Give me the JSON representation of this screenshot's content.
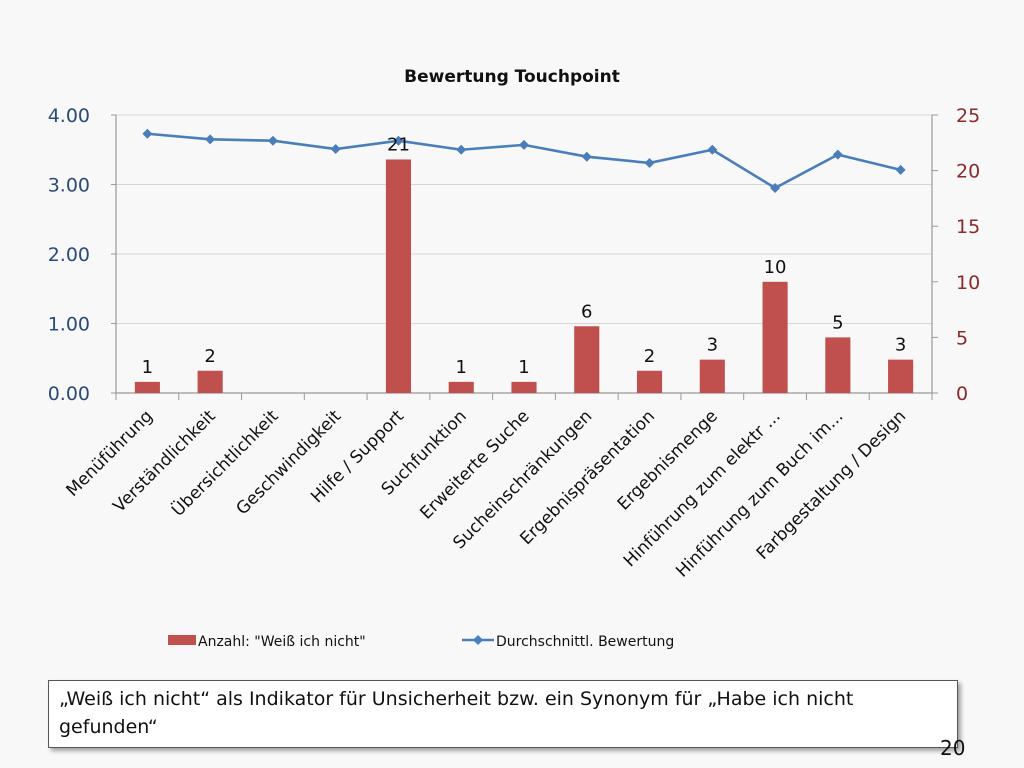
{
  "chart_data": {
    "type": "bar",
    "title": "Bewertung Touchpoint",
    "categories": [
      "Menüführung",
      "Verständlichkeit",
      "Übersichtlichkeit",
      "Geschwindigkeit",
      "Hilfe / Support",
      "Suchfunktion",
      "Erweiterte Suche",
      "Sucheinschränkungen",
      "Ergebnispräsentation",
      "Ergebnismenge",
      "Hinführung zum elektr ...",
      "Hinführung zum Buch im...",
      "Farbgestaltung / Design"
    ],
    "series": [
      {
        "name": "Anzahl: \"Weiß ich nicht\"",
        "type": "bar",
        "axis": "right",
        "color": "#c0504d",
        "values": [
          1,
          2,
          0,
          0,
          21,
          1,
          1,
          6,
          2,
          3,
          10,
          5,
          3
        ],
        "data_labels": [
          "1",
          "2",
          "",
          "",
          "21",
          "1",
          "1",
          "6",
          "2",
          "3",
          "10",
          "5",
          "3"
        ]
      },
      {
        "name": "Durchschnittl. Bewertung",
        "type": "line",
        "axis": "left",
        "color": "#4a7ebb",
        "marker": "diamond",
        "values": [
          3.73,
          3.65,
          3.63,
          3.51,
          3.63,
          3.5,
          3.57,
          3.4,
          3.31,
          3.5,
          2.95,
          3.43,
          3.21
        ]
      }
    ],
    "y_left": {
      "ylim": [
        0,
        4
      ],
      "ticks": [
        "0.00",
        "1.00",
        "2.00",
        "3.00",
        "4.00"
      ],
      "tick_values": [
        0,
        1,
        2,
        3,
        4
      ],
      "color": "#2a4a7a"
    },
    "y_right": {
      "ylim": [
        0,
        25
      ],
      "ticks": [
        "0",
        "5",
        "10",
        "15",
        "20",
        "25"
      ],
      "tick_values": [
        0,
        5,
        10,
        15,
        20,
        25
      ],
      "color": "#8a2a2a"
    },
    "xlabel": "",
    "ylabel": "",
    "grid": true,
    "legend": {
      "placement": "bottom",
      "entries": [
        "Anzahl: \"Weiß ich nicht\"",
        "Durchschnittl. Bewertung"
      ]
    }
  },
  "note": {
    "text": "„Weiß ich nicht“ als Indikator für Unsicherheit bzw. ein Synonym für „Habe ich nicht gefunden“"
  },
  "page_number": "20"
}
